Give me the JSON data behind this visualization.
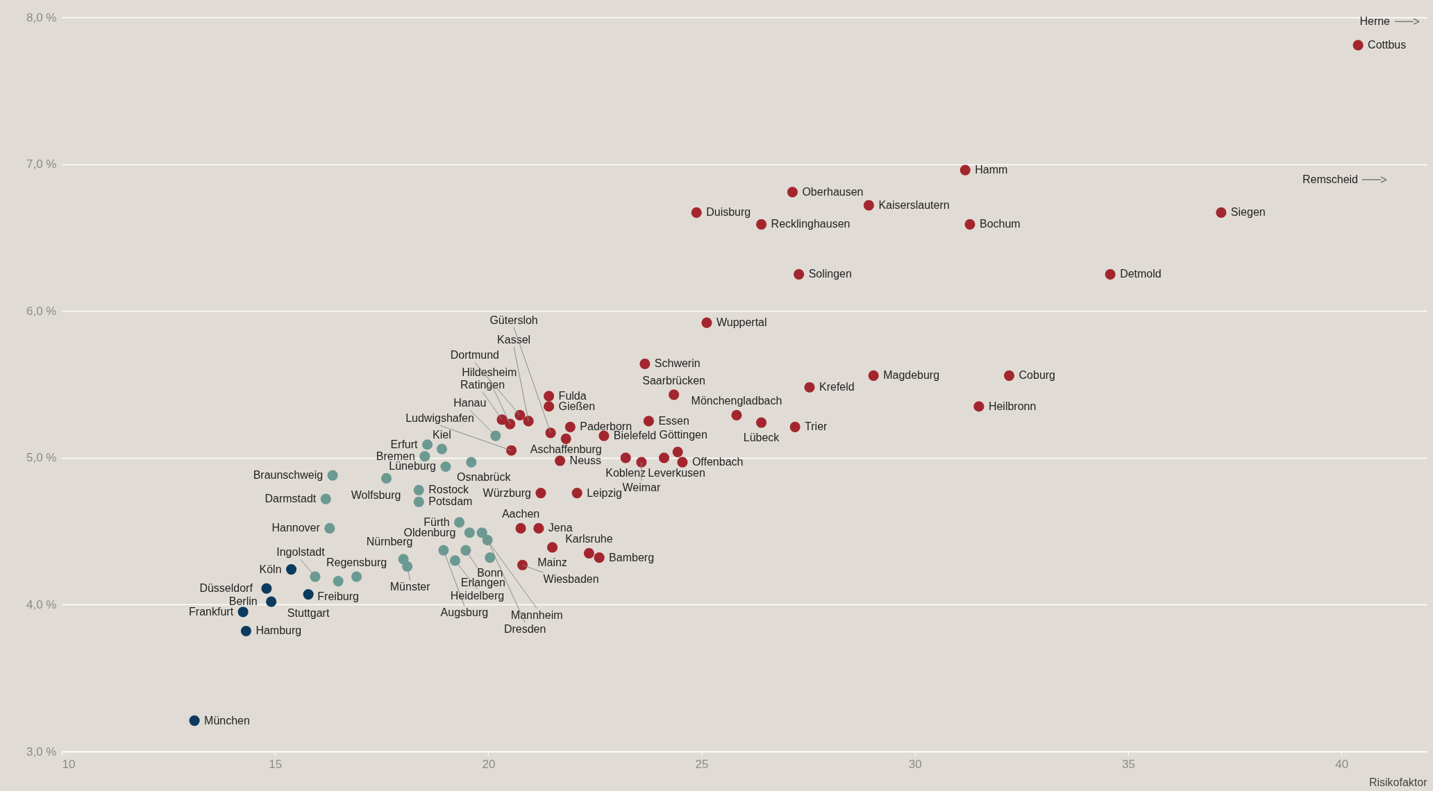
{
  "chart_data": {
    "type": "scatter",
    "xlabel": "Risikofaktor",
    "xlim": [
      10,
      42
    ],
    "xticks": [
      10,
      15,
      20,
      25,
      30,
      35,
      40
    ],
    "ylim": [
      3,
      8
    ],
    "yticks": [
      {
        "value": 3,
        "label": "3,0 %"
      },
      {
        "value": 4,
        "label": "4,0 %"
      },
      {
        "value": 5,
        "label": "5,0 %"
      },
      {
        "value": 6,
        "label": "6,0 %"
      },
      {
        "value": 7,
        "label": "7,0 %"
      },
      {
        "value": 8,
        "label": "8,0 %"
      }
    ],
    "grid": "y",
    "marker": "circle",
    "series": [
      {
        "color": "#a3262f",
        "x": [
          40.39,
          31.18,
          27.13,
          28.92,
          24.88,
          26.4,
          31.29,
          37.18,
          27.28,
          34.58,
          25.12,
          23.67,
          29.03,
          32.21,
          27.53,
          24.35,
          31.5,
          21.42,
          21.42,
          25.82,
          26.4,
          27.19,
          23.76,
          21.92,
          22.71,
          21.68,
          21.23,
          22.08,
          23.22,
          23.59,
          24.12,
          24.44,
          24.55,
          20.76,
          21.18,
          21.5,
          20.8,
          22.36,
          22.6,
          20.32,
          20.51,
          20.74,
          20.94,
          21.46,
          20.54,
          21.82
        ],
        "values": [
          7.81,
          6.96,
          6.81,
          6.72,
          6.67,
          6.59,
          6.59,
          6.67,
          6.25,
          6.25,
          5.92,
          5.64,
          5.56,
          5.56,
          5.48,
          5.43,
          5.35,
          5.42,
          5.35,
          5.29,
          5.24,
          5.21,
          5.25,
          5.21,
          5.15,
          4.98,
          4.76,
          4.76,
          5.0,
          4.97,
          5.0,
          5.04,
          4.97,
          4.52,
          4.52,
          4.39,
          4.27,
          4.35,
          4.32,
          5.26,
          5.23,
          5.29,
          5.25,
          5.17,
          5.05,
          5.13
        ]
      },
      {
        "color": "#6b9a92",
        "x": [
          20.17,
          18.91,
          18.57,
          18.51,
          19.0,
          19.6,
          17.61,
          18.37,
          18.37,
          16.35,
          16.19,
          16.28,
          19.32,
          19.56,
          19.85,
          19.98,
          18.95,
          19.22,
          19.47,
          20.04,
          18.01,
          18.1,
          16.91,
          16.48,
          15.94
        ],
        "values": [
          5.15,
          5.06,
          5.09,
          5.01,
          4.94,
          4.97,
          4.86,
          4.78,
          4.7,
          4.88,
          4.72,
          4.52,
          4.56,
          4.49,
          4.49,
          4.44,
          4.37,
          4.3,
          4.37,
          4.32,
          4.31,
          4.26,
          4.19,
          4.16,
          4.19
        ]
      },
      {
        "color": "#0d3a5f",
        "x": [
          15.38,
          15.78,
          14.8,
          14.91,
          14.25,
          14.32,
          13.11
        ],
        "values": [
          4.24,
          4.07,
          4.11,
          4.02,
          3.95,
          3.82,
          3.21
        ]
      }
    ],
    "annotations": [
      {
        "text": "Cottbus",
        "x": 40.39,
        "y": 7.81
      },
      {
        "text": "Hamm",
        "x": 31.18,
        "y": 6.96
      },
      {
        "text": "Oberhausen",
        "x": 27.13,
        "y": 6.81
      },
      {
        "text": "Kaiserslautern",
        "x": 28.92,
        "y": 6.72
      },
      {
        "text": "Duisburg",
        "x": 24.88,
        "y": 6.67
      },
      {
        "text": "Recklinghausen",
        "x": 26.4,
        "y": 6.59
      },
      {
        "text": "Bochum",
        "x": 31.29,
        "y": 6.59
      },
      {
        "text": "Siegen",
        "x": 37.18,
        "y": 6.67
      },
      {
        "text": "Solingen",
        "x": 27.28,
        "y": 6.25
      },
      {
        "text": "Detmold",
        "x": 34.58,
        "y": 6.25
      },
      {
        "text": "Wuppertal",
        "x": 25.12,
        "y": 5.92
      },
      {
        "text": "Schwerin",
        "x": 23.67,
        "y": 5.64
      },
      {
        "text": "Magdeburg",
        "x": 29.03,
        "y": 5.56
      },
      {
        "text": "Coburg",
        "x": 32.21,
        "y": 5.56
      },
      {
        "text": "Krefeld",
        "x": 27.53,
        "y": 5.48
      },
      {
        "text": "Saarbrücken",
        "x": 24.35,
        "y": 5.43
      },
      {
        "text": "Heilbronn",
        "x": 31.5,
        "y": 5.35
      },
      {
        "text": "Fulda",
        "x": 21.42,
        "y": 5.42
      },
      {
        "text": "Gießen",
        "x": 21.42,
        "y": 5.35
      },
      {
        "text": "Mönchengladbach",
        "x": 25.82,
        "y": 5.29
      },
      {
        "text": "Lübeck",
        "x": 26.4,
        "y": 5.24
      },
      {
        "text": "Trier",
        "x": 27.19,
        "y": 5.21
      },
      {
        "text": "Essen",
        "x": 23.76,
        "y": 5.25
      },
      {
        "text": "Paderborn",
        "x": 21.92,
        "y": 5.21
      },
      {
        "text": "Bielefeld",
        "x": 22.71,
        "y": 5.15
      },
      {
        "text": "Neuss",
        "x": 21.68,
        "y": 4.98
      },
      {
        "text": "Würzburg",
        "x": 21.23,
        "y": 4.76
      },
      {
        "text": "Leipzig",
        "x": 22.08,
        "y": 4.76
      },
      {
        "text": "Koblenz",
        "x": 23.22,
        "y": 5.0
      },
      {
        "text": "Weimar",
        "x": 23.59,
        "y": 4.97
      },
      {
        "text": "Leverkusen",
        "x": 24.12,
        "y": 5.0
      },
      {
        "text": "Göttingen",
        "x": 24.44,
        "y": 5.04
      },
      {
        "text": "Offenbach",
        "x": 24.55,
        "y": 4.97
      },
      {
        "text": "Aachen",
        "x": 20.76,
        "y": 4.52
      },
      {
        "text": "Jena",
        "x": 21.18,
        "y": 4.52
      },
      {
        "text": "Mainz",
        "x": 21.5,
        "y": 4.39
      },
      {
        "text": "Wiesbaden",
        "x": 20.8,
        "y": 4.27
      },
      {
        "text": "Karlsruhe",
        "x": 22.36,
        "y": 4.35
      },
      {
        "text": "Bamberg",
        "x": 22.6,
        "y": 4.32
      },
      {
        "text": "Ratingen",
        "x": 20.32,
        "y": 5.26
      },
      {
        "text": "Hildesheim",
        "x": 20.51,
        "y": 5.23
      },
      {
        "text": "Dortmund",
        "x": 20.74,
        "y": 5.29
      },
      {
        "text": "Kassel",
        "x": 20.94,
        "y": 5.25
      },
      {
        "text": "Gütersloh",
        "x": 21.46,
        "y": 5.17
      },
      {
        "text": "Ludwigshafen",
        "x": 20.54,
        "y": 5.05
      },
      {
        "text": "Aschaffenburg",
        "x": 21.82,
        "y": 5.13
      },
      {
        "text": "Hanau",
        "x": 20.17,
        "y": 5.15
      },
      {
        "text": "Kiel",
        "x": 18.91,
        "y": 5.06
      },
      {
        "text": "Erfurt",
        "x": 18.57,
        "y": 5.09
      },
      {
        "text": "Bremen",
        "x": 18.51,
        "y": 5.01
      },
      {
        "text": "Lüneburg",
        "x": 19.0,
        "y": 4.94
      },
      {
        "text": "Osnabrück",
        "x": 19.6,
        "y": 4.97
      },
      {
        "text": "Wolfsburg",
        "x": 17.61,
        "y": 4.86
      },
      {
        "text": "Rostock",
        "x": 18.37,
        "y": 4.78
      },
      {
        "text": "Potsdam",
        "x": 18.37,
        "y": 4.7
      },
      {
        "text": "Braunschweig",
        "x": 16.35,
        "y": 4.88
      },
      {
        "text": "Darmstadt",
        "x": 16.19,
        "y": 4.72
      },
      {
        "text": "Hannover",
        "x": 16.28,
        "y": 4.52
      },
      {
        "text": "Fürth",
        "x": 19.32,
        "y": 4.56
      },
      {
        "text": "Oldenburg",
        "x": 19.56,
        "y": 4.49
      },
      {
        "text": "Mannheim",
        "x": 19.85,
        "y": 4.49
      },
      {
        "text": "Dresden",
        "x": 19.98,
        "y": 4.44
      },
      {
        "text": "Augsburg",
        "x": 18.95,
        "y": 4.37
      },
      {
        "text": "Heidelberg",
        "x": 19.22,
        "y": 4.3
      },
      {
        "text": "Erlangen",
        "x": 19.47,
        "y": 4.37
      },
      {
        "text": "Bonn",
        "x": 20.04,
        "y": 4.32
      },
      {
        "text": "Nürnberg",
        "x": 18.01,
        "y": 4.31
      },
      {
        "text": "Münster",
        "x": 18.1,
        "y": 4.26
      },
      {
        "text": "Regensburg",
        "x": 16.91,
        "y": 4.19
      },
      {
        "text": "Freiburg",
        "x": 16.48,
        "y": 4.16
      },
      {
        "text": "Ingolstadt",
        "x": 15.94,
        "y": 4.19
      },
      {
        "text": "Köln",
        "x": 15.38,
        "y": 4.24
      },
      {
        "text": "Stuttgart",
        "x": 15.78,
        "y": 4.07
      },
      {
        "text": "Düsseldorf",
        "x": 14.8,
        "y": 4.11
      },
      {
        "text": "Berlin",
        "x": 14.91,
        "y": 4.02
      },
      {
        "text": "Frankfurt",
        "x": 14.25,
        "y": 3.95
      },
      {
        "text": "Hamburg",
        "x": 14.32,
        "y": 3.82
      },
      {
        "text": "München",
        "x": 13.11,
        "y": 3.21
      },
      "Herne",
      "Remscheid"
    ]
  }
}
